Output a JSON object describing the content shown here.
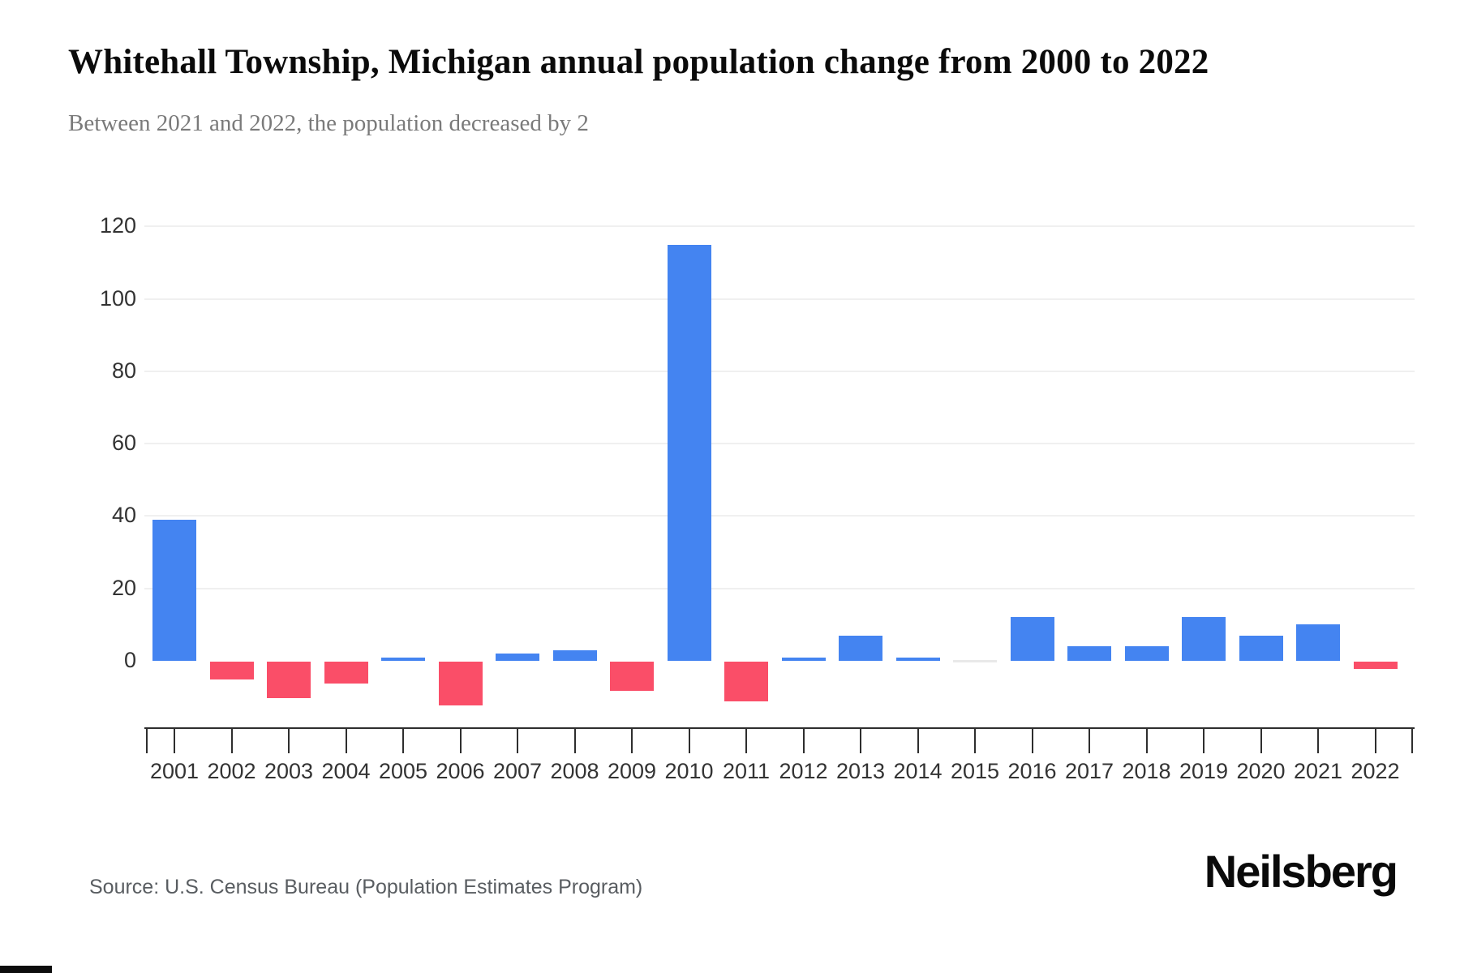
{
  "header": {
    "title": "Whitehall Township, Michigan annual population change from 2000 to 2022",
    "subtitle": "Between 2021 and 2022, the population decreased by 2"
  },
  "chart_data": {
    "type": "bar",
    "title": "Whitehall Township, Michigan annual population change from 2000 to 2022",
    "categories": [
      "2001",
      "2002",
      "2003",
      "2004",
      "2005",
      "2006",
      "2007",
      "2008",
      "2009",
      "2010",
      "2011",
      "2012",
      "2013",
      "2014",
      "2015",
      "2016",
      "2017",
      "2018",
      "2019",
      "2020",
      "2021",
      "2022"
    ],
    "values": [
      39,
      -5,
      -10,
      -6,
      1,
      -12,
      2,
      3,
      -8,
      115,
      -11,
      1,
      7,
      1,
      0,
      12,
      4,
      4,
      12,
      7,
      10,
      -2
    ],
    "xlabel": "",
    "ylabel": "",
    "yticks": [
      0,
      20,
      40,
      60,
      80,
      100,
      120
    ],
    "ylim": [
      -18,
      130
    ],
    "grid": true,
    "legend_position": "none",
    "colors": {
      "positive": "#4484F1",
      "negative": "#FA4E68",
      "zero": "#e9e9e9",
      "gridline": "#f0f0f0",
      "axis": "#2e2e2e"
    }
  },
  "footer": {
    "source": "Source: U.S. Census Bureau (Population Estimates Program)",
    "logo": "Neilsberg"
  }
}
